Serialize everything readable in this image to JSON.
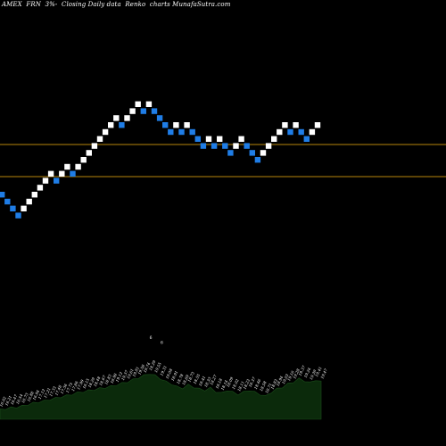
{
  "title": "AMEX  FRN  3%-  Closing Daily data  Renko  charts MunafaSutra.com",
  "chart_data": {
    "type": "renko",
    "colors": {
      "up": "#ffffff",
      "down": "#1f7de6",
      "level_line": "#b8860b",
      "volume_fill": "#0b2a0b",
      "label": "#ffffff",
      "background": "#000000"
    },
    "levels": [
      16,
      20
    ],
    "bricks": [
      {
        "dir": "down",
        "level": 0
      },
      {
        "dir": "down",
        "level": -1
      },
      {
        "dir": "down",
        "level": -2
      },
      {
        "dir": "down",
        "level": -3
      },
      {
        "dir": "up",
        "level": -2
      },
      {
        "dir": "up",
        "level": -1
      },
      {
        "dir": "up",
        "level": 0
      },
      {
        "dir": "up",
        "level": 1
      },
      {
        "dir": "up",
        "level": 2
      },
      {
        "dir": "up",
        "level": 3
      },
      {
        "dir": "down",
        "level": 2
      },
      {
        "dir": "up",
        "level": 3
      },
      {
        "dir": "up",
        "level": 4
      },
      {
        "dir": "down",
        "level": 3
      },
      {
        "dir": "up",
        "level": 4
      },
      {
        "dir": "up",
        "level": 5
      },
      {
        "dir": "up",
        "level": 6
      },
      {
        "dir": "up",
        "level": 7
      },
      {
        "dir": "up",
        "level": 8
      },
      {
        "dir": "up",
        "level": 9
      },
      {
        "dir": "up",
        "level": 10
      },
      {
        "dir": "up",
        "level": 11
      },
      {
        "dir": "down",
        "level": 10
      },
      {
        "dir": "up",
        "level": 11
      },
      {
        "dir": "up",
        "level": 12
      },
      {
        "dir": "up",
        "level": 13
      },
      {
        "dir": "down",
        "level": 12
      },
      {
        "dir": "up",
        "level": 13
      },
      {
        "dir": "down",
        "level": 12
      },
      {
        "dir": "down",
        "level": 11
      },
      {
        "dir": "down",
        "level": 10
      },
      {
        "dir": "down",
        "level": 9
      },
      {
        "dir": "up",
        "level": 10
      },
      {
        "dir": "down",
        "level": 9
      },
      {
        "dir": "up",
        "level": 10
      },
      {
        "dir": "down",
        "level": 9
      },
      {
        "dir": "down",
        "level": 8
      },
      {
        "dir": "down",
        "level": 7
      },
      {
        "dir": "up",
        "level": 8
      },
      {
        "dir": "down",
        "level": 7
      },
      {
        "dir": "up",
        "level": 8
      },
      {
        "dir": "down",
        "level": 7
      },
      {
        "dir": "down",
        "level": 6
      },
      {
        "dir": "up",
        "level": 7
      },
      {
        "dir": "up",
        "level": 8
      },
      {
        "dir": "down",
        "level": 7
      },
      {
        "dir": "down",
        "level": 6
      },
      {
        "dir": "down",
        "level": 5
      },
      {
        "dir": "up",
        "level": 6
      },
      {
        "dir": "up",
        "level": 7
      },
      {
        "dir": "up",
        "level": 8
      },
      {
        "dir": "up",
        "level": 9
      },
      {
        "dir": "up",
        "level": 10
      },
      {
        "dir": "down",
        "level": 9
      },
      {
        "dir": "up",
        "level": 10
      },
      {
        "dir": "down",
        "level": 9
      },
      {
        "dir": "down",
        "level": 8
      },
      {
        "dir": "up",
        "level": 9
      },
      {
        "dir": "up",
        "level": 10
      }
    ],
    "volume_profile": [
      0.2,
      0.22,
      0.24,
      0.25,
      0.27,
      0.3,
      0.33,
      0.35,
      0.37,
      0.4,
      0.42,
      0.45,
      0.47,
      0.5,
      0.53,
      0.55,
      0.57,
      0.59,
      0.61,
      0.63,
      0.65,
      0.68,
      0.71,
      0.74,
      0.78,
      0.82,
      0.86,
      0.9,
      0.86,
      0.8,
      0.74,
      0.7,
      0.64,
      0.62,
      0.68,
      0.64,
      0.6,
      0.58,
      0.62,
      0.55,
      0.52,
      0.58,
      0.54,
      0.5,
      0.54,
      0.58,
      0.54,
      0.5,
      0.46,
      0.54,
      0.6,
      0.64,
      0.7,
      0.74,
      0.8,
      0.76,
      0.72,
      0.78,
      0.74
    ],
    "volume_labels": [
      "16.02",
      "16.21",
      "16.47",
      "16.54",
      "16.73",
      "16.88",
      "16.94",
      "17.12",
      "17.21",
      "17.33",
      "17.48",
      "17.56",
      "17.73",
      "17.86",
      "17.99",
      "18.15",
      "18.29",
      "18.48",
      "18.67",
      "18.83",
      "18.98",
      "19.12",
      "19.37",
      "19.61",
      "19.81",
      "19.58",
      "19.74",
      "18.29",
      "19.55",
      "19.31",
      "19.08",
      "18.91",
      "18.78",
      "18.69",
      "18.73",
      "18.55",
      "18.41",
      "18.33",
      "18.27",
      "18.18",
      "18.14",
      "18.09",
      "18.02",
      "18.11",
      "18.23",
      "18.37",
      "18.46",
      "18.58",
      "18.71",
      "18.83",
      "18.94",
      "19.03",
      "19.16",
      "19.28",
      "19.37",
      "19.24",
      "19.39",
      "19.41",
      "19.47"
    ],
    "volume_markers": [
      {
        "index": 27,
        "text": "6"
      },
      {
        "index": 29,
        "text": "6"
      }
    ]
  }
}
